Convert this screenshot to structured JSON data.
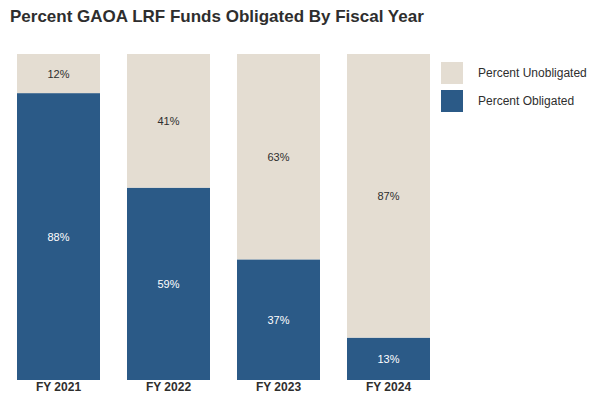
{
  "chart_data": {
    "type": "bar",
    "title": "Percent GAOA LRF Funds Obligated By Fiscal Year",
    "categories": [
      "FY 2021",
      "FY 2022",
      "FY 2023",
      "FY 2024"
    ],
    "series": [
      {
        "name": "Percent Obligated",
        "color": "#2b5a87",
        "values": [
          88,
          59,
          37,
          13
        ],
        "value_labels": [
          "88%",
          "59%",
          "37%",
          "13%"
        ]
      },
      {
        "name": "Percent Unobligated",
        "color": "#e4ddd2",
        "values": [
          12,
          41,
          63,
          87
        ],
        "value_labels": [
          "12%",
          "41%",
          "63%",
          "87%"
        ]
      }
    ],
    "ylim": [
      0,
      100
    ],
    "stacked": true,
    "data_labels": true,
    "tick_labels": "x",
    "legend": "right"
  }
}
